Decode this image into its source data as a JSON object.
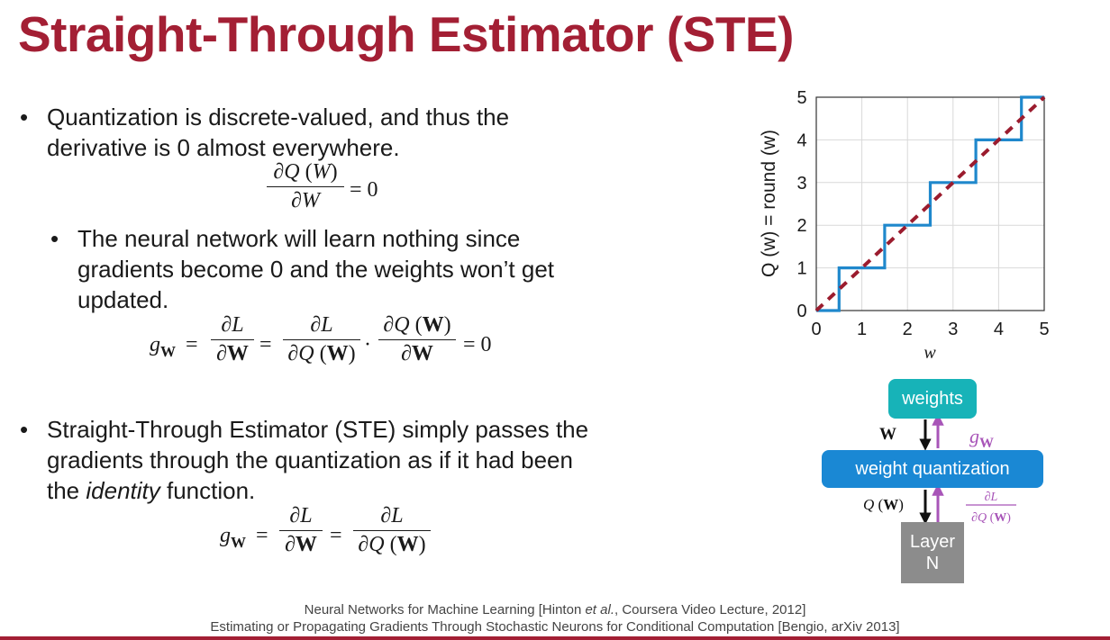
{
  "title": "Straight-Through Estimator (STE)",
  "bullets": {
    "b1_line1": "Quantization is discrete-valued, and thus the",
    "b1_line2": "derivative is 0 almost everywhere.",
    "sub1_line1": "The neural network will learn nothing since",
    "sub1_line2": "gradients become 0 and the weights won’t get",
    "sub1_line3": "updated.",
    "b2_line1": "Straight-Through Estimator (STE) simply passes the",
    "b2_line2": "gradients through the quantization as if it had been",
    "b2_line3_pre": "the ",
    "b2_line3_em": "identity",
    "b2_line3_post": " function."
  },
  "references": {
    "ref1_pre": "Neural Networks for Machine Learning [Hinton ",
    "ref1_em": "et al.",
    "ref1_post": ", Coursera Video Lecture, 2012]",
    "ref2": "Estimating or Propagating Gradients Through Stochastic Neurons for Conditional Computation [Bengio, arXiv 2013]"
  },
  "chart_data": {
    "type": "line",
    "xlabel": "w",
    "ylabel": "Q (w) = round (w)",
    "xlim": [
      0,
      5
    ],
    "ylim": [
      0,
      5
    ],
    "xticks": [
      "0",
      "1",
      "2",
      "3",
      "4",
      "5"
    ],
    "yticks": [
      "0",
      "1",
      "2",
      "3",
      "4",
      "5"
    ],
    "grid": true,
    "series": [
      {
        "type": "step",
        "color": "#1f88cc",
        "x": [
          0,
          0.5,
          0.5,
          1.5,
          1.5,
          2.5,
          2.5,
          3.5,
          3.5,
          4.5,
          4.5,
          5
        ],
        "y": [
          0,
          0,
          1,
          1,
          2,
          2,
          3,
          3,
          4,
          4,
          5,
          5
        ]
      },
      {
        "type": "dashed",
        "color": "#9b1c2e",
        "x": [
          0,
          5
        ],
        "y": [
          0,
          5
        ]
      }
    ]
  },
  "diagram": {
    "weights_label": "weights",
    "quant_label": "weight quantization",
    "layer_label": "Layer\nN",
    "colors": {
      "weights": "#17b3b8",
      "quant": "#1a88d4",
      "layer": "#8c8c8c",
      "grad": "#a855b8"
    }
  }
}
